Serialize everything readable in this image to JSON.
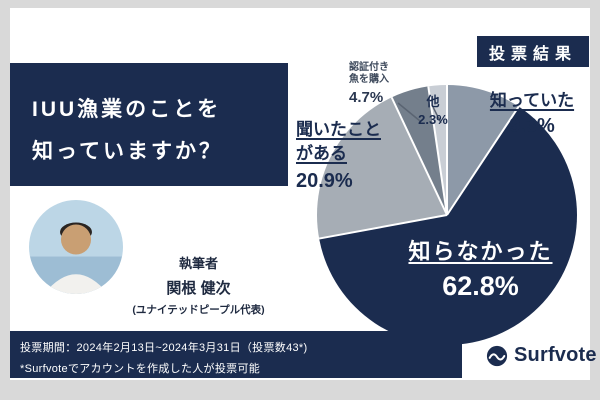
{
  "theme": {
    "navy": "#1b2c4f",
    "bg": "#d9d9d9",
    "card": "#ffffff"
  },
  "badge": {
    "label": "投票結果"
  },
  "title": {
    "lines": [
      "IUU漁業のことを",
      "知っていますか？"
    ]
  },
  "author": {
    "heading": "執筆者",
    "name": "関根 健次",
    "affiliation": "(ユナイテッドピープル代表)"
  },
  "footer": {
    "period": "投票期間：2024年2月13日~2024年3月31日（投票数43*)",
    "note": "*Surfvoteでアカウントを作成した人が投票可能"
  },
  "logo": {
    "text": "Surfvote"
  },
  "chart_data": {
    "type": "pie",
    "title": "IUU漁業のことを知っていますか？",
    "start_angle": "top",
    "direction": "clockwise",
    "segments": [
      {
        "label": "知っていた",
        "value": 9.3,
        "pct_label": "9.3%",
        "color": "#8d99a8"
      },
      {
        "label": "知らなかった",
        "value": 62.8,
        "pct_label": "62.8%",
        "color": "#1b2c4f"
      },
      {
        "label": "聞いたことがある",
        "label_lines": [
          "聞いたこと",
          "がある"
        ],
        "value": 20.9,
        "pct_label": "20.9%",
        "color": "#a6adb5"
      },
      {
        "label": "認証付き魚を購入",
        "label_lines": [
          "認証付き",
          "魚を購入"
        ],
        "value": 4.7,
        "pct_label": "4.7%",
        "color": "#747f8c"
      },
      {
        "label": "他",
        "value": 2.3,
        "pct_label": "2.3%",
        "color": "#c9ced5"
      }
    ]
  }
}
